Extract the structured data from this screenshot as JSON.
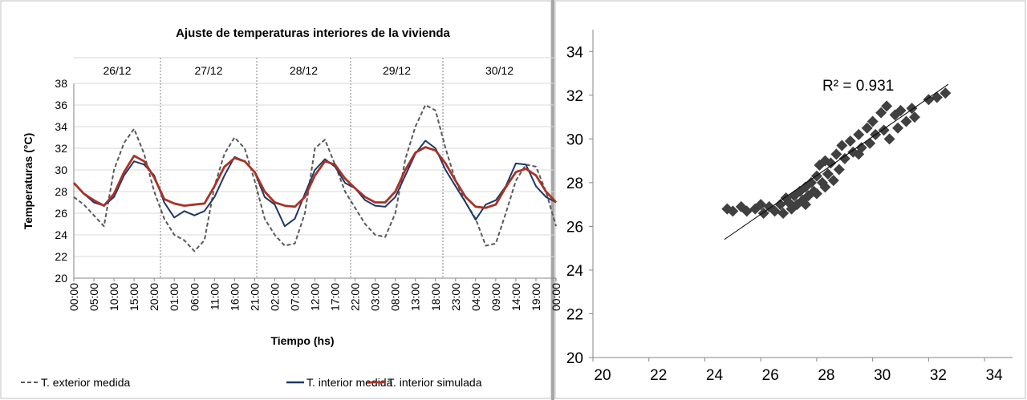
{
  "chart_data": [
    {
      "type": "line",
      "title": "Ajuste de temperaturas  interiores de la vivienda",
      "xlabel": "Tiempo (hs)",
      "ylabel": "Temperaturas (°C)",
      "annotations": [
        "26/12",
        "27/12",
        "28/12",
        "29/12",
        "30/12"
      ],
      "categories": [
        "00:00",
        null,
        "05:00",
        null,
        "10:00",
        null,
        "15:00",
        null,
        "20:00",
        null,
        "01:00",
        null,
        "06:00",
        null,
        "11:00",
        null,
        "16:00",
        null,
        "21:00",
        null,
        "02:00",
        null,
        "07:00",
        null,
        "12:00",
        null,
        "17:00",
        null,
        "22:00",
        null,
        "03:00",
        null,
        "08:00",
        null,
        "13:00",
        null,
        "18:00",
        null,
        "23:00",
        null,
        "04:00",
        null,
        "09:00",
        null,
        "14:00",
        null,
        "19:00",
        null,
        "00:00"
      ],
      "ylim": [
        20,
        38
      ],
      "yticks": [
        20,
        22,
        24,
        26,
        28,
        30,
        32,
        34,
        36,
        38
      ],
      "grid": true,
      "legend": "bottom",
      "series": [
        {
          "name": "T. exterior medida",
          "color": "#595959",
          "dash": true,
          "values": [
            27.5,
            26.8,
            25.8,
            24.8,
            30,
            32.5,
            33.8,
            31.5,
            28,
            25.5,
            24,
            23.5,
            22.5,
            23.5,
            28.5,
            31.5,
            33,
            32,
            29,
            25.5,
            24,
            23,
            23.2,
            26,
            32,
            32.8,
            30.5,
            28,
            26.5,
            25,
            24,
            23.8,
            26,
            31,
            34,
            36,
            35.5,
            32,
            29,
            27,
            25.5,
            23,
            23.2,
            26,
            29,
            30.5,
            30.3,
            28,
            24.8
          ]
        },
        {
          "name": "T. interior medida",
          "color": "#1f3864",
          "dash": false,
          "values": [
            28.8,
            27.8,
            27.0,
            26.7,
            27.5,
            29.5,
            30.8,
            30.5,
            29.5,
            27,
            25.6,
            26.2,
            25.8,
            26.2,
            27.5,
            29.5,
            31.2,
            30.8,
            29.8,
            27.5,
            26.8,
            24.8,
            25.5,
            27.8,
            30,
            31,
            30.3,
            28.8,
            28.3,
            27.2,
            26.7,
            26.6,
            27.5,
            29.5,
            31.5,
            32.7,
            32,
            30,
            28.5,
            27,
            25.4,
            26.8,
            27.2,
            28.5,
            30.6,
            30.5,
            28.5,
            27.5,
            27
          ]
        },
        {
          "name": "T. interior simulada",
          "color": "#a93226",
          "dash": false,
          "values": [
            28.8,
            27.8,
            27.2,
            26.7,
            27.8,
            29.8,
            31.3,
            30.8,
            29.3,
            27.3,
            26.9,
            26.7,
            26.8,
            26.9,
            28.5,
            30.3,
            31.1,
            30.8,
            29.8,
            28,
            27,
            26.7,
            26.6,
            27.5,
            29.5,
            30.8,
            30.5,
            29.2,
            28.3,
            27.5,
            27,
            27,
            28,
            30,
            31.6,
            32.1,
            31.8,
            30.6,
            29,
            27.5,
            26.6,
            26.5,
            26.8,
            28.4,
            29.8,
            30.1,
            29.5,
            28,
            27
          ]
        }
      ]
    },
    {
      "type": "scatter",
      "color": "#404040",
      "annotations": [
        "R² = 0.931"
      ],
      "xlim": [
        20,
        35
      ],
      "ylim": [
        20,
        35
      ],
      "xticks": [
        20,
        22,
        24,
        26,
        28,
        30,
        32,
        34
      ],
      "yticks": [
        20,
        22,
        24,
        26,
        28,
        30,
        32,
        34
      ],
      "x": [
        24.8,
        25.0,
        25.3,
        25.5,
        25.8,
        26.0,
        26.1,
        26.3,
        26.5,
        26.7,
        26.8,
        27.0,
        27.1,
        27.2,
        27.3,
        27.4,
        27.5,
        27.6,
        27.7,
        27.8,
        27.9,
        28.0,
        28.0,
        28.1,
        28.2,
        28.3,
        28.4,
        28.5,
        28.6,
        28.7,
        28.8,
        28.9,
        29.0,
        29.2,
        29.3,
        29.5,
        29.6,
        29.8,
        29.9,
        30.0,
        30.1,
        30.3,
        30.4,
        30.5,
        30.6,
        30.8,
        30.9,
        31.0,
        31.2,
        31.4,
        31.5,
        32.0,
        32.3,
        32.6,
        28.3,
        27.6,
        29.5,
        26.9
      ],
      "values": [
        26.8,
        26.7,
        26.9,
        26.7,
        26.8,
        27.0,
        26.6,
        26.9,
        26.7,
        27.0,
        26.6,
        27.1,
        26.8,
        27.4,
        27.0,
        27.6,
        27.2,
        27.8,
        27.4,
        28.0,
        27.6,
        28.3,
        27.5,
        28.8,
        28.0,
        29.0,
        28.4,
        28.9,
        28.1,
        29.3,
        28.6,
        29.7,
        29.1,
        29.9,
        29.4,
        30.2,
        29.6,
        30.5,
        29.8,
        30.8,
        30.2,
        31.2,
        30.4,
        31.5,
        30.0,
        31.1,
        30.5,
        31.3,
        30.8,
        31.4,
        31.0,
        31.8,
        31.9,
        32.1,
        27.8,
        27.0,
        29.3,
        27.3
      ],
      "trendline": {
        "x": [
          24.7,
          32.7
        ],
        "values": [
          25.4,
          32.5
        ]
      }
    }
  ]
}
